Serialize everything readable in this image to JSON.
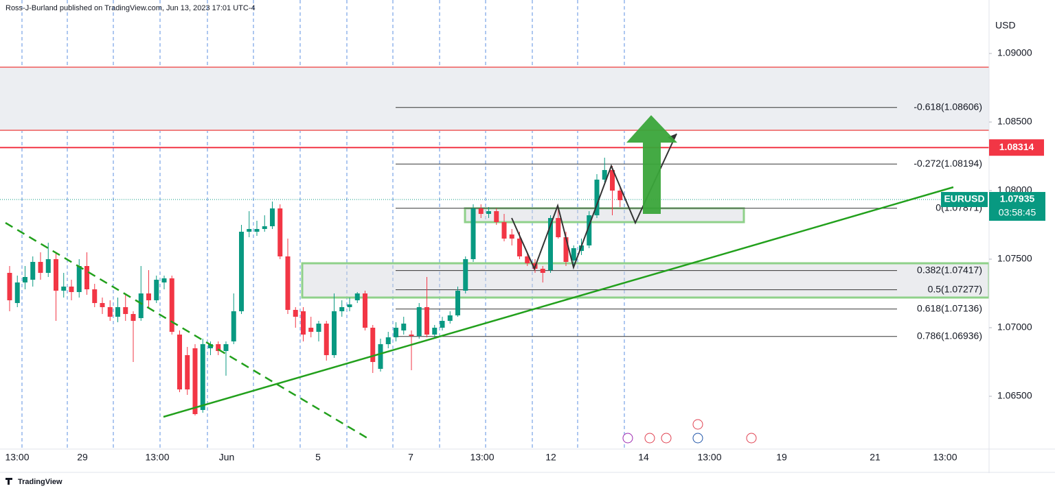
{
  "header": {
    "attribution": "Ross-J-Burland published on TradingView.com, Jun 13, 2023 17:01 UTC-4",
    "currency": "USD",
    "footer": "TradingView"
  },
  "chart_data": {
    "type": "candlestick",
    "symbol": "EURUSD",
    "last_price": 1.07935,
    "countdown": "03:58:45",
    "up_color": "#089981",
    "down_color": "#f23645",
    "x_labels": [
      "13:00",
      "29",
      "13:00",
      "Jun",
      "5",
      "7",
      "13:00",
      "12",
      "14",
      "13:00",
      "19",
      "21",
      "13:00"
    ],
    "open": [
      1.074,
      1.0718,
      1.0733,
      1.0735,
      1.0748,
      1.074,
      1.075,
      1.0727,
      1.073,
      1.0726,
      1.0745,
      1.0728,
      1.0718,
      1.0715,
      1.0708,
      1.0715,
      1.071,
      1.0707,
      1.0725,
      1.072,
      1.0733,
      1.0736,
      1.0695,
      1.068,
      1.0685,
      1.064,
      1.0685,
      1.0688,
      1.0683,
      1.069,
      1.0712,
      1.077,
      1.077,
      1.0772,
      1.0774,
      1.0787,
      1.0752,
      1.0713,
      1.0712,
      1.07,
      1.0697,
      1.0703,
      1.068,
      1.0712,
      1.0715,
      1.072,
      1.0725,
      1.07,
      1.067,
      1.0688,
      1.0693,
      1.0698,
      1.0695,
      1.0694,
      1.0715,
      1.0695,
      1.07,
      1.0705,
      1.0709,
      1.0727,
      1.075,
      1.0787,
      1.0783,
      1.0785,
      1.0777,
      1.0768,
      1.0765,
      1.0752,
      1.0747,
      1.0743,
      1.0742,
      1.078,
      1.0766,
      1.0749,
      1.0756,
      1.076,
      1.0782,
      1.0808,
      1.0815,
      1.08
    ],
    "high": [
      1.0745,
      1.0738,
      1.0745,
      1.0752,
      1.0755,
      1.0762,
      1.0755,
      1.074,
      1.0735,
      1.075,
      1.0755,
      1.0732,
      1.0722,
      1.072,
      1.0722,
      1.0725,
      1.0712,
      1.0745,
      1.0742,
      1.0738,
      1.0738,
      1.0738,
      1.0698,
      1.0686,
      1.0688,
      1.0692,
      1.069,
      1.069,
      1.069,
      1.0725,
      1.0775,
      1.0785,
      1.0778,
      1.0782,
      1.0792,
      1.079,
      1.0765,
      1.0715,
      1.0715,
      1.0708,
      1.0705,
      1.0705,
      1.0725,
      1.072,
      1.0722,
      1.0726,
      1.0727,
      1.0702,
      1.0692,
      1.0697,
      1.0704,
      1.0708,
      1.0698,
      1.0718,
      1.0737,
      1.0702,
      1.0708,
      1.0712,
      1.073,
      1.0752,
      1.079,
      1.079,
      1.0788,
      1.0787,
      1.0783,
      1.0772,
      1.077,
      1.0755,
      1.075,
      1.0745,
      1.0782,
      1.0787,
      1.077,
      1.076,
      1.0765,
      1.0785,
      1.0812,
      1.0824,
      1.0818,
      1.0803
    ],
    "low": [
      1.0712,
      1.0715,
      1.0728,
      1.073,
      1.0735,
      1.0737,
      1.0705,
      1.0722,
      1.072,
      1.0722,
      1.0724,
      1.0715,
      1.071,
      1.0705,
      1.0704,
      1.0705,
      1.0675,
      1.0705,
      1.0715,
      1.0718,
      1.0728,
      1.0695,
      1.0653,
      1.0651,
      1.0636,
      1.0638,
      1.068,
      1.068,
      1.0665,
      1.0688,
      1.071,
      1.0766,
      1.0767,
      1.077,
      1.0772,
      1.075,
      1.071,
      1.07,
      1.069,
      1.0693,
      1.069,
      1.0676,
      1.0678,
      1.0708,
      1.0712,
      1.0718,
      1.0698,
      1.0667,
      1.0668,
      1.0685,
      1.069,
      1.0695,
      1.0669,
      1.0692,
      1.0693,
      1.0692,
      1.0698,
      1.0703,
      1.0708,
      1.0725,
      1.0748,
      1.078,
      1.078,
      1.0775,
      1.0763,
      1.076,
      1.075,
      1.0745,
      1.074,
      1.0733,
      1.074,
      1.0765,
      1.0745,
      1.0745,
      1.0753,
      1.0758,
      1.078,
      1.0806,
      1.0782,
      1.0788
    ],
    "close": [
      1.072,
      1.0733,
      1.0737,
      1.0748,
      1.074,
      1.075,
      1.0727,
      1.073,
      1.0726,
      1.0745,
      1.0728,
      1.0718,
      1.0715,
      1.0708,
      1.0715,
      1.071,
      1.0705,
      1.0725,
      1.072,
      1.0735,
      1.0736,
      1.0697,
      1.0655,
      1.0655,
      1.0637,
      1.0688,
      1.0688,
      1.0683,
      1.0688,
      1.0712,
      1.077,
      1.0772,
      1.0772,
      1.0774,
      1.0787,
      1.0752,
      1.0713,
      1.0708,
      1.0695,
      1.0697,
      1.0703,
      1.068,
      1.0712,
      1.0715,
      1.0717,
      1.0725,
      1.07,
      1.0675,
      1.0688,
      1.0693,
      1.07,
      1.0703,
      1.0694,
      1.0715,
      1.0695,
      1.07,
      1.0705,
      1.0709,
      1.0727,
      1.075,
      1.0787,
      1.0783,
      1.0785,
      1.0777,
      1.0765,
      1.0765,
      1.0752,
      1.0747,
      1.0743,
      1.074,
      1.078,
      1.0766,
      1.0748,
      1.0758,
      1.076,
      1.0782,
      1.0808,
      1.0815,
      1.08,
      1.0793
    ],
    "ylim": [
      1.06115,
      1.0939
    ],
    "yticks": [
      {
        "value": 1.065,
        "label": "1.06500"
      },
      {
        "value": 1.07,
        "label": "1.07000"
      },
      {
        "value": 1.075,
        "label": "1.07500"
      },
      {
        "value": 1.08,
        "label": "1.08000"
      },
      {
        "value": 1.085,
        "label": "1.08500"
      },
      {
        "value": 1.09,
        "label": "1.09000"
      }
    ],
    "resistance": 1.08314,
    "resistance_zone": [
      1.089,
      1.0844
    ],
    "support_boxes": [
      [
        1.07871,
        1.0777
      ],
      [
        1.0747,
        1.0722
      ]
    ],
    "fib_levels": [
      {
        "value": 1.08606,
        "label": "-0.618(1.08606)"
      },
      {
        "value": 1.08194,
        "label": "-0.272(1.08194)"
      },
      {
        "value": 1.07871,
        "label": "0(1.07871)"
      },
      {
        "value": 1.07417,
        "label": "0.382(1.07417)"
      },
      {
        "value": 1.07277,
        "label": "0.5(1.07277)"
      },
      {
        "value": 1.07136,
        "label": "0.618(1.07136)"
      },
      {
        "value": 1.06936,
        "label": "0.786(1.06936)"
      }
    ]
  }
}
